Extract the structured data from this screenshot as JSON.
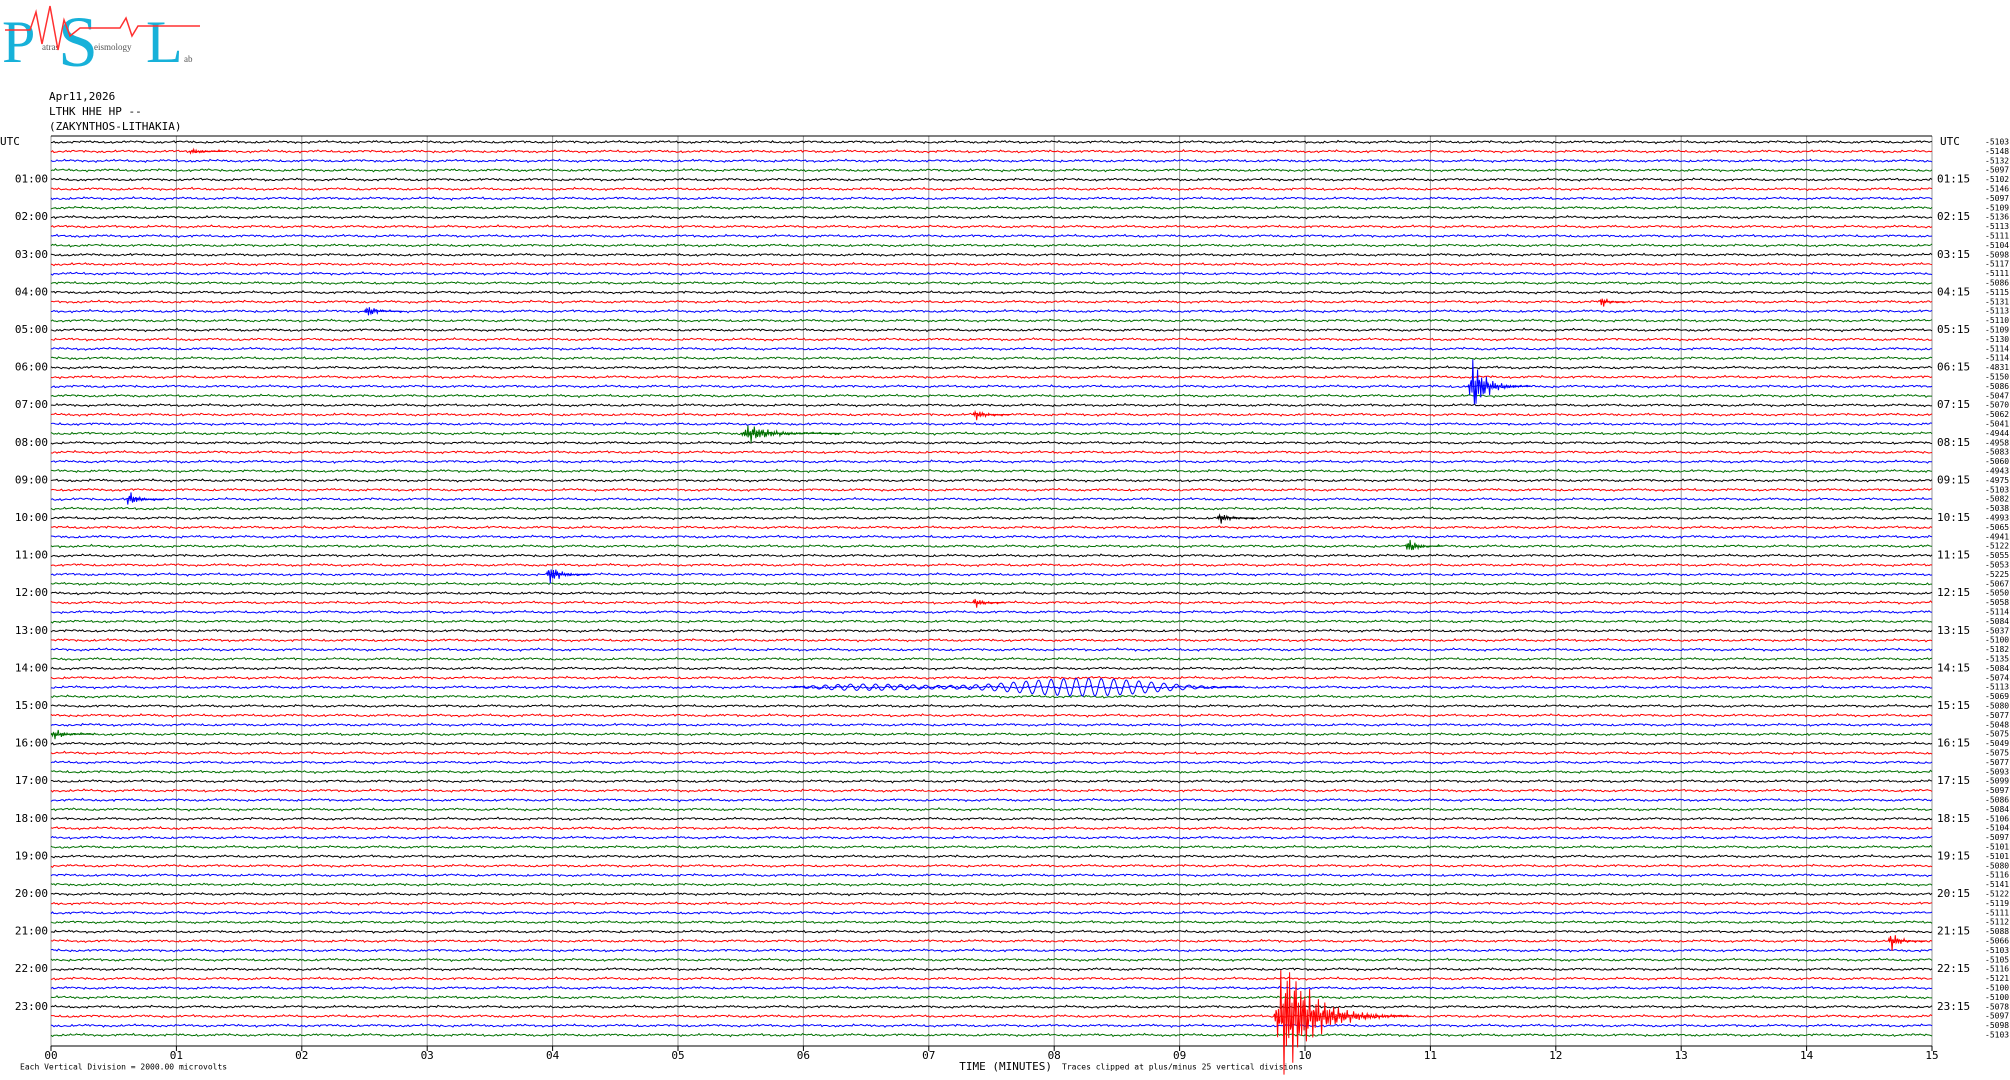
{
  "logo": {
    "p": "P",
    "s": "S",
    "l": "L",
    "p_sub": "atras",
    "s_sub": "eismology",
    "l_sub": "ab"
  },
  "header": {
    "date": "Apr11,2026",
    "station": "LTHK HHE HP --",
    "location": "(ZAKYNTHOS-LITHAKIA)"
  },
  "chart_data": {
    "type": "helicorder",
    "left_axis_title": "UTC",
    "right_axis_title": "UTC",
    "hours_left": [
      "01:00",
      "02:00",
      "03:00",
      "04:00",
      "05:00",
      "06:00",
      "07:00",
      "08:00",
      "09:00",
      "10:00",
      "11:00",
      "12:00",
      "13:00",
      "14:00",
      "15:00",
      "16:00",
      "17:00",
      "18:00",
      "19:00",
      "20:00",
      "21:00",
      "22:00",
      "23:00"
    ],
    "hours_right": [
      "01:15",
      "02:15",
      "03:15",
      "04:15",
      "05:15",
      "06:15",
      "07:15",
      "08:15",
      "09:15",
      "10:15",
      "11:15",
      "12:15",
      "13:15",
      "14:15",
      "15:15",
      "16:15",
      "17:15",
      "18:15",
      "19:15",
      "20:15",
      "21:15",
      "22:15",
      "23:15"
    ],
    "trace_offsets": [
      -5103,
      -5148,
      -5132,
      -5097,
      -5102,
      -5146,
      -5097,
      -5109,
      -5136,
      -5113,
      -5111,
      -5104,
      -5098,
      -5117,
      -5111,
      -5086,
      -5115,
      -5131,
      -5113,
      -5110,
      -5109,
      -5130,
      -5114,
      -5114,
      -4831,
      -5150,
      -5086,
      -5047,
      -5070,
      -5062,
      -5041,
      -4944,
      -4958,
      -5083,
      -5060,
      -4943,
      -4975,
      -5103,
      -5082,
      -5038,
      -4993,
      -5065,
      -4941,
      -5122,
      -5055,
      -5053,
      -5225,
      -5067,
      -5050,
      -5058,
      -5114,
      -5084,
      -5037,
      -5100,
      -5182,
      -5135,
      -5084,
      -5074,
      -5113,
      -5069,
      -5080,
      -5077,
      -5048,
      -5075,
      -5049,
      -5075,
      -5077,
      -5093,
      -5099,
      -5097,
      -5086,
      -5084,
      -5106,
      -5104,
      -5097,
      -5101,
      -5101,
      -5080,
      -5116,
      -5141,
      -5122,
      -5119,
      -5111,
      -5112,
      -5088,
      -5066,
      -5103,
      -5105,
      -5116,
      -5121,
      -5100,
      -5100,
      -5078,
      -5097,
      -5098,
      -5103
    ],
    "colors": [
      "#000000",
      "#ff0000",
      "#0000ff",
      "#007000"
    ],
    "xlim": [
      0,
      15
    ],
    "xticks": [
      {
        "value": 0,
        "label": "00"
      },
      {
        "value": 1,
        "label": "01"
      },
      {
        "value": 2,
        "label": "02"
      },
      {
        "value": 3,
        "label": "03"
      },
      {
        "value": 4,
        "label": "04"
      },
      {
        "value": 5,
        "label": "05"
      },
      {
        "value": 6,
        "label": "06"
      },
      {
        "value": 7,
        "label": "07"
      },
      {
        "value": 8,
        "label": "08"
      },
      {
        "value": 9,
        "label": "09"
      },
      {
        "value": 10,
        "label": "10"
      },
      {
        "value": 11,
        "label": "11"
      },
      {
        "value": 12,
        "label": "12"
      },
      {
        "value": 13,
        "label": "13"
      },
      {
        "value": 14,
        "label": "14"
      },
      {
        "value": 15,
        "label": "15"
      }
    ],
    "xlabel": "TIME (MINUTES)",
    "scale_note": "Each Vertical Division = 2000.00 microvolts",
    "clip_note": "Traces clipped at plus/minus 25 vertical divisions",
    "grid": true,
    "events": [
      {
        "trace": 1,
        "start": 1.1,
        "duration": 0.3,
        "amplitude": 0.4,
        "period": 0.01
      },
      {
        "trace": 17,
        "start": 12.35,
        "duration": 0.2,
        "amplitude": 0.9,
        "period": 0.01
      },
      {
        "trace": 18,
        "start": 2.5,
        "duration": 0.3,
        "amplitude": 0.9,
        "period": 0.01
      },
      {
        "trace": 26,
        "start": 11.3,
        "duration": 0.5,
        "amplitude": 3.5,
        "period": 0.01
      },
      {
        "trace": 29,
        "start": 7.35,
        "duration": 0.3,
        "amplitude": 0.8,
        "period": 0.01
      },
      {
        "trace": 31,
        "start": 5.5,
        "duration": 0.8,
        "amplitude": 1.2,
        "period": 0.01
      },
      {
        "trace": 38,
        "start": 0.6,
        "duration": 0.3,
        "amplitude": 1.1,
        "period": 0.01
      },
      {
        "trace": 40,
        "start": 9.3,
        "duration": 0.3,
        "amplitude": 0.8,
        "period": 0.01
      },
      {
        "trace": 43,
        "start": 10.8,
        "duration": 0.3,
        "amplitude": 1.1,
        "period": 0.01
      },
      {
        "trace": 46,
        "start": 3.95,
        "duration": 0.35,
        "amplitude": 1.4,
        "period": 0.01
      },
      {
        "trace": 49,
        "start": 7.35,
        "duration": 0.25,
        "amplitude": 0.8,
        "period": 0.01
      },
      {
        "trace": 58,
        "start": 5.9,
        "duration": 3.6,
        "amplitude": 1.1,
        "period": 0.1
      },
      {
        "trace": 63,
        "start": 0.0,
        "duration": 0.35,
        "amplitude": 0.7,
        "period": 0.01
      },
      {
        "trace": 85,
        "start": 14.65,
        "duration": 0.3,
        "amplitude": 1.3,
        "period": 0.01
      },
      {
        "trace": 93,
        "start": 9.75,
        "duration": 1.1,
        "amplitude": 7.5,
        "period": 0.01
      }
    ]
  }
}
